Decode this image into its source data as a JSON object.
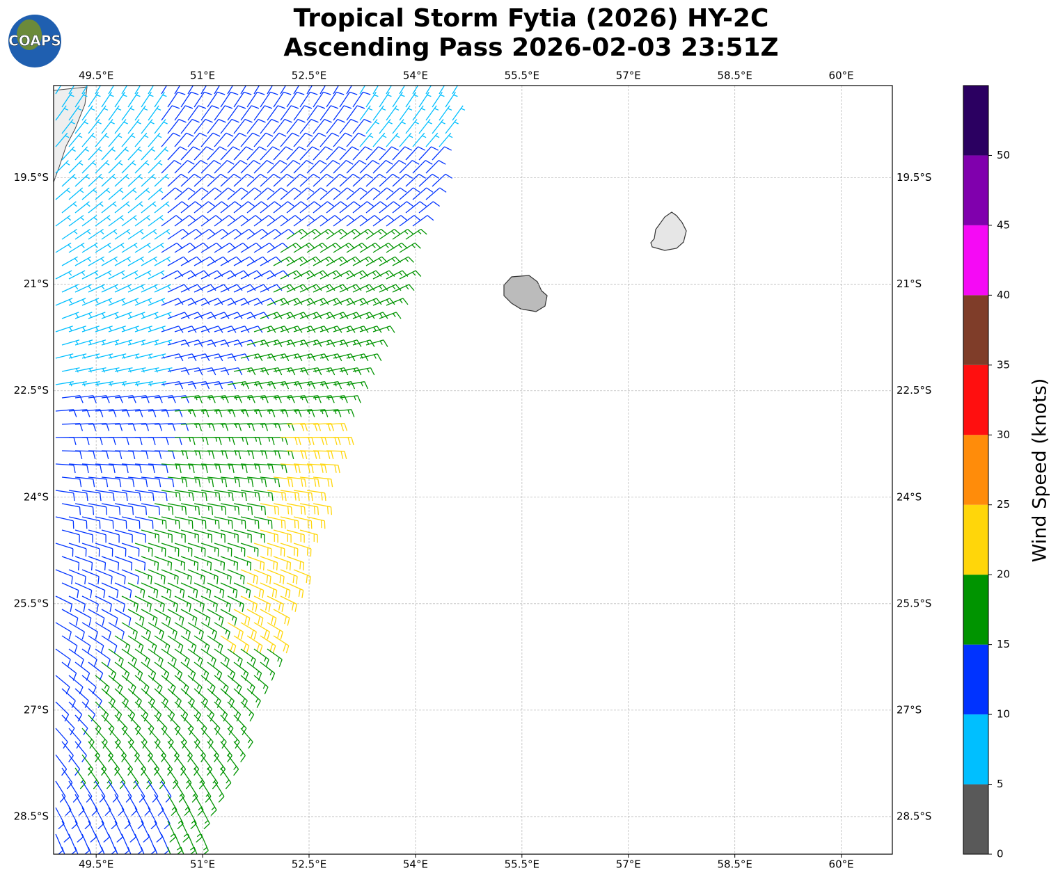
{
  "header": {
    "title_line1": "Tropical Storm Fytia (2026) HY-2C",
    "title_line2": "Ascending Pass 2026-02-03 23:51Z",
    "logo_text": "COAPS"
  },
  "map": {
    "lon_range": [
      48.9,
      60.72
    ],
    "lat_range": [
      -18.2,
      -29.03
    ],
    "lon_ticks": [
      {
        "value": 49.5,
        "label": "49.5°E"
      },
      {
        "value": 51,
        "label": "51°E"
      },
      {
        "value": 52.5,
        "label": "52.5°E"
      },
      {
        "value": 54,
        "label": "54°E"
      },
      {
        "value": 55.5,
        "label": "55.5°E"
      },
      {
        "value": 57,
        "label": "57°E"
      },
      {
        "value": 58.5,
        "label": "58.5°E"
      },
      {
        "value": 60,
        "label": "60°E"
      }
    ],
    "lat_ticks": [
      {
        "value": -19.5,
        "label": "19.5°S"
      },
      {
        "value": -21,
        "label": "21°S"
      },
      {
        "value": -22.5,
        "label": "22.5°S"
      },
      {
        "value": -24,
        "label": "24°S"
      },
      {
        "value": -25.5,
        "label": "25.5°S"
      },
      {
        "value": -27,
        "label": "27°S"
      },
      {
        "value": -28.5,
        "label": "28.5°S"
      }
    ],
    "grid": true
  },
  "colorbar": {
    "label": "Wind Speed (knots)",
    "range": [
      0,
      55
    ],
    "bounds": [
      0,
      5,
      10,
      15,
      20,
      25,
      30,
      35,
      40,
      45,
      50,
      55
    ],
    "colors": [
      "#595959",
      "#00bfff",
      "#0033ff",
      "#009400",
      "#ffd60a",
      "#ff8c0a",
      "#ff0f0f",
      "#7f3d29",
      "#f50af5",
      "#8000ad",
      "#2b0061"
    ],
    "ticks": [
      0,
      5,
      10,
      15,
      20,
      25,
      30,
      35,
      40,
      45,
      50
    ]
  }
}
